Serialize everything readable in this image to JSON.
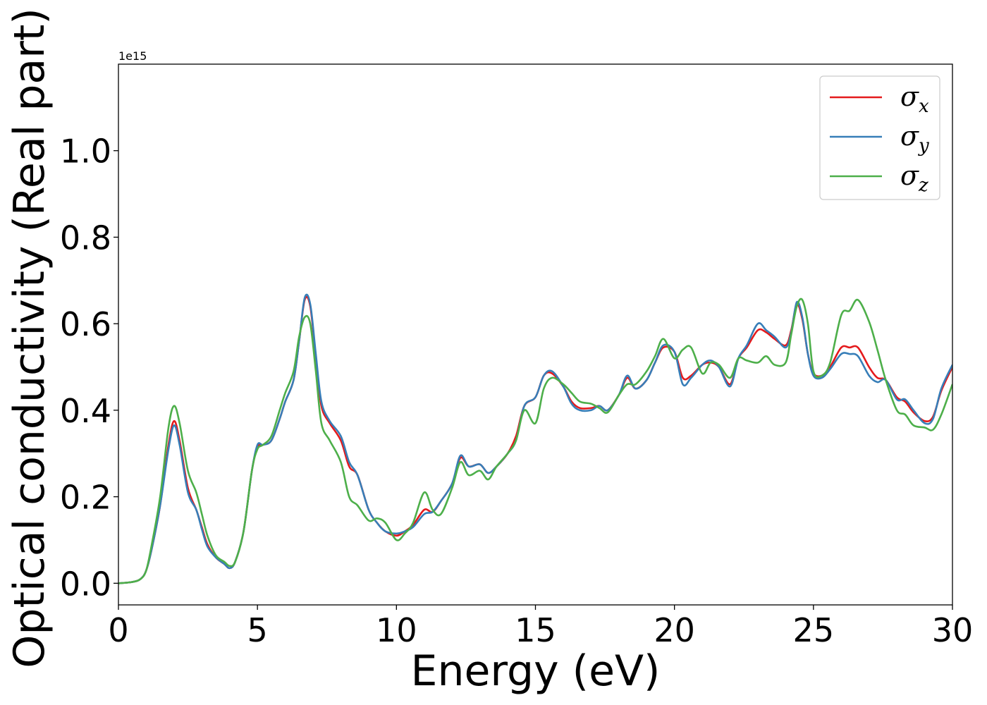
{
  "chart_data": {
    "type": "line",
    "title": "",
    "xlabel": "Energy (eV)",
    "ylabel": "Optical conductivity (Real part)",
    "y_offset_label": "1e15",
    "xlim": [
      0,
      30
    ],
    "ylim": [
      -0.05,
      1.2
    ],
    "xticks": [
      0,
      5,
      10,
      15,
      20,
      25,
      30
    ],
    "xtick_labels": [
      "0",
      "5",
      "10",
      "15",
      "20",
      "25",
      "30"
    ],
    "yticks": [
      0.0,
      0.2,
      0.4,
      0.6,
      0.8,
      1.0
    ],
    "ytick_labels": [
      "0.0",
      "0.2",
      "0.4",
      "0.6",
      "0.8",
      "1.0"
    ],
    "grid": false,
    "legend_position": "top-right",
    "x": [
      0,
      0.5,
      0.8,
      1.0,
      1.2,
      1.5,
      1.8,
      2.0,
      2.2,
      2.5,
      2.8,
      3.0,
      3.2,
      3.5,
      3.8,
      4.0,
      4.2,
      4.5,
      4.8,
      5.0,
      5.2,
      5.5,
      5.8,
      6.0,
      6.3,
      6.5,
      6.7,
      6.9,
      7.1,
      7.3,
      7.6,
      8.0,
      8.3,
      8.6,
      9.0,
      9.3,
      9.6,
      10.0,
      10.3,
      10.6,
      11.0,
      11.3,
      11.6,
      12.0,
      12.3,
      12.6,
      13.0,
      13.3,
      13.6,
      14.0,
      14.3,
      14.6,
      15.0,
      15.3,
      15.6,
      16.0,
      16.3,
      16.6,
      17.0,
      17.3,
      17.6,
      18.0,
      18.3,
      18.6,
      19.0,
      19.3,
      19.6,
      20.0,
      20.3,
      20.6,
      21.0,
      21.3,
      21.6,
      22.0,
      22.3,
      22.6,
      23.0,
      23.3,
      23.6,
      24.0,
      24.2,
      24.4,
      24.6,
      24.8,
      25.0,
      25.3,
      25.6,
      26.0,
      26.3,
      26.6,
      27.0,
      27.3,
      27.6,
      28.0,
      28.3,
      28.6,
      29.0,
      29.3,
      29.6,
      30.0
    ],
    "series": [
      {
        "name": "σx",
        "label_base": "σ",
        "label_sub": "x",
        "color": "#e41a1c",
        "values": [
          0.0,
          0.003,
          0.01,
          0.03,
          0.08,
          0.18,
          0.32,
          0.375,
          0.33,
          0.22,
          0.17,
          0.13,
          0.09,
          0.06,
          0.045,
          0.035,
          0.05,
          0.12,
          0.26,
          0.315,
          0.32,
          0.33,
          0.38,
          0.42,
          0.47,
          0.56,
          0.655,
          0.64,
          0.52,
          0.41,
          0.37,
          0.33,
          0.27,
          0.25,
          0.17,
          0.14,
          0.12,
          0.11,
          0.12,
          0.135,
          0.17,
          0.165,
          0.19,
          0.23,
          0.29,
          0.27,
          0.275,
          0.255,
          0.27,
          0.3,
          0.34,
          0.41,
          0.43,
          0.48,
          0.485,
          0.455,
          0.42,
          0.405,
          0.405,
          0.41,
          0.4,
          0.435,
          0.475,
          0.45,
          0.47,
          0.51,
          0.545,
          0.535,
          0.475,
          0.48,
          0.505,
          0.51,
          0.5,
          0.46,
          0.52,
          0.545,
          0.585,
          0.58,
          0.565,
          0.55,
          0.585,
          0.645,
          0.61,
          0.53,
          0.485,
          0.48,
          0.5,
          0.545,
          0.545,
          0.545,
          0.5,
          0.475,
          0.47,
          0.43,
          0.42,
          0.395,
          0.375,
          0.385,
          0.445,
          0.5
        ]
      },
      {
        "name": "σy",
        "label_base": "σ",
        "label_sub": "y",
        "color": "#377eb8",
        "values": [
          0.0,
          0.003,
          0.01,
          0.03,
          0.08,
          0.18,
          0.31,
          0.365,
          0.32,
          0.21,
          0.17,
          0.125,
          0.085,
          0.06,
          0.045,
          0.035,
          0.05,
          0.12,
          0.26,
          0.32,
          0.32,
          0.33,
          0.38,
          0.42,
          0.47,
          0.56,
          0.66,
          0.645,
          0.53,
          0.42,
          0.375,
          0.34,
          0.28,
          0.25,
          0.17,
          0.14,
          0.12,
          0.115,
          0.12,
          0.13,
          0.16,
          0.165,
          0.19,
          0.23,
          0.295,
          0.27,
          0.275,
          0.255,
          0.27,
          0.3,
          0.33,
          0.41,
          0.43,
          0.48,
          0.49,
          0.455,
          0.415,
          0.4,
          0.4,
          0.41,
          0.4,
          0.435,
          0.48,
          0.45,
          0.47,
          0.51,
          0.55,
          0.535,
          0.46,
          0.475,
          0.505,
          0.515,
          0.5,
          0.455,
          0.52,
          0.55,
          0.6,
          0.585,
          0.57,
          0.545,
          0.58,
          0.65,
          0.615,
          0.53,
          0.48,
          0.475,
          0.495,
          0.53,
          0.53,
          0.525,
          0.48,
          0.465,
          0.47,
          0.425,
          0.425,
          0.4,
          0.37,
          0.38,
          0.45,
          0.505
        ]
      },
      {
        "name": "σz",
        "label_base": "σ",
        "label_sub": "z",
        "color": "#4daf4a",
        "values": [
          0.0,
          0.003,
          0.01,
          0.03,
          0.09,
          0.2,
          0.36,
          0.41,
          0.37,
          0.26,
          0.21,
          0.16,
          0.11,
          0.065,
          0.05,
          0.04,
          0.05,
          0.12,
          0.26,
          0.31,
          0.32,
          0.34,
          0.4,
          0.44,
          0.49,
          0.57,
          0.615,
          0.6,
          0.49,
          0.37,
          0.33,
          0.28,
          0.2,
          0.18,
          0.145,
          0.15,
          0.14,
          0.1,
          0.115,
          0.14,
          0.21,
          0.17,
          0.16,
          0.22,
          0.28,
          0.25,
          0.26,
          0.24,
          0.27,
          0.3,
          0.33,
          0.4,
          0.37,
          0.45,
          0.475,
          0.46,
          0.44,
          0.42,
          0.415,
          0.405,
          0.395,
          0.435,
          0.46,
          0.46,
          0.49,
          0.525,
          0.565,
          0.52,
          0.54,
          0.545,
          0.485,
          0.51,
          0.505,
          0.475,
          0.52,
          0.515,
          0.51,
          0.525,
          0.505,
          0.51,
          0.575,
          0.64,
          0.655,
          0.6,
          0.49,
          0.48,
          0.51,
          0.62,
          0.63,
          0.655,
          0.605,
          0.54,
          0.47,
          0.4,
          0.39,
          0.365,
          0.36,
          0.355,
          0.39,
          0.46
        ]
      }
    ]
  }
}
